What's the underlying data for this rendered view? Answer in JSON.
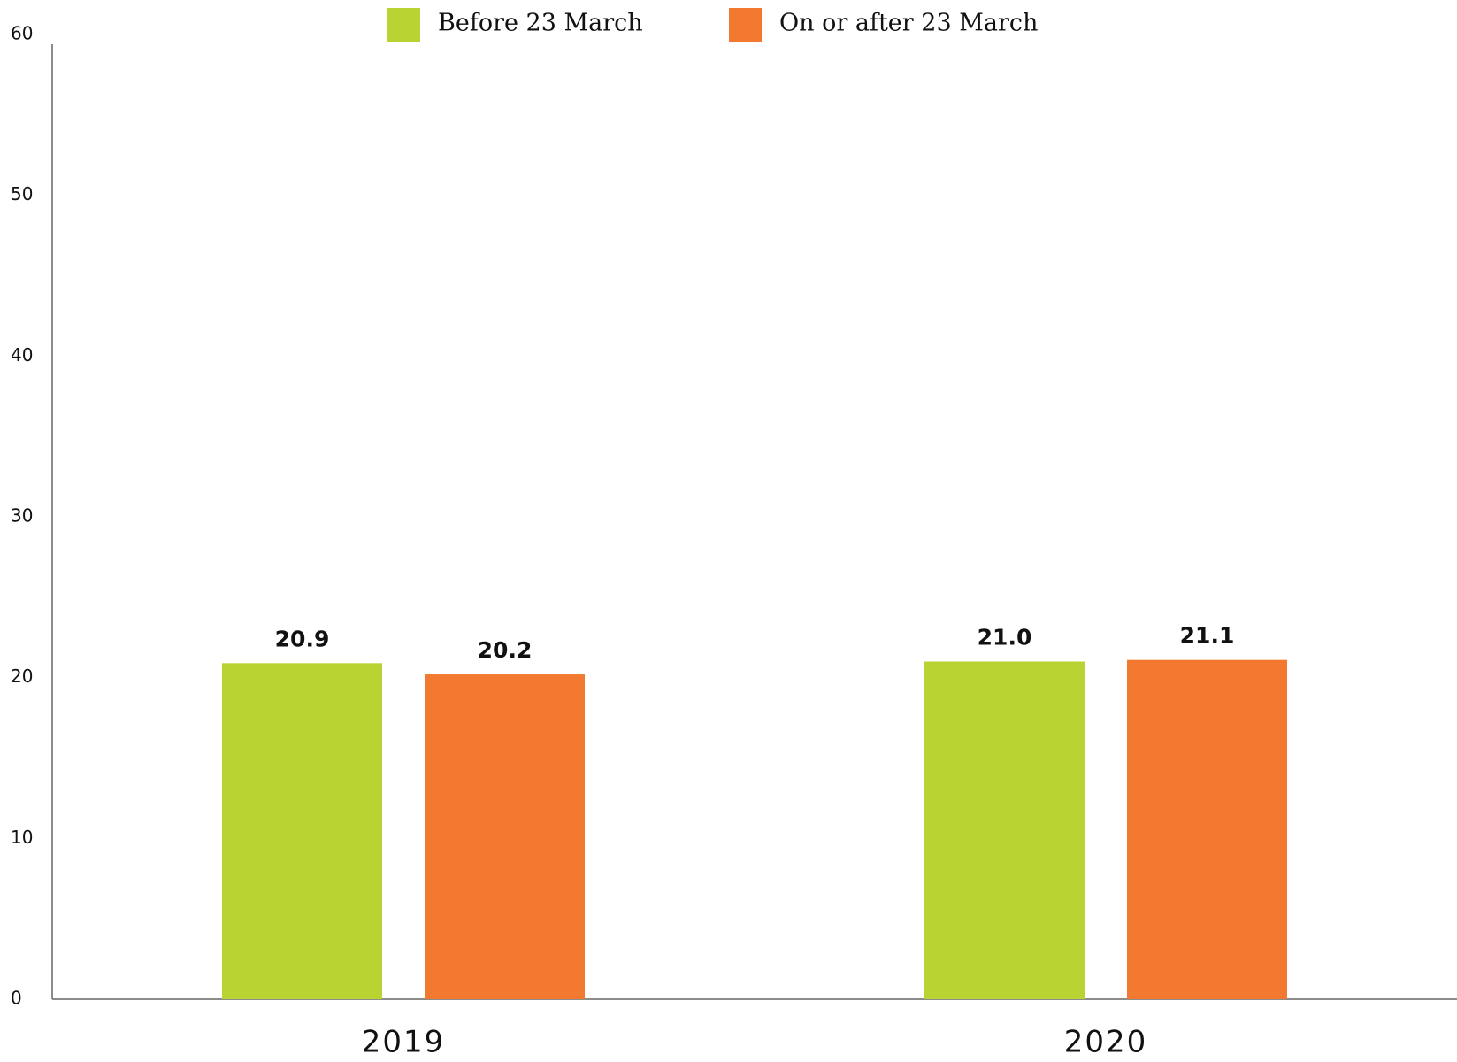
{
  "chart_data": {
    "type": "bar",
    "categories": [
      "2019",
      "2020"
    ],
    "series": [
      {
        "name": "Before 23 March",
        "color": "#b9d432",
        "values": [
          20.9,
          21.0
        ],
        "value_labels": [
          "20.9",
          "21.0"
        ]
      },
      {
        "name": "On or after 23 March",
        "color": "#f37830",
        "values": [
          20.2,
          21.1
        ]
      }
    ],
    "ylim": [
      0,
      60
    ],
    "yticks": [
      0,
      10,
      20,
      30,
      40,
      50,
      60
    ],
    "grid": false
  }
}
